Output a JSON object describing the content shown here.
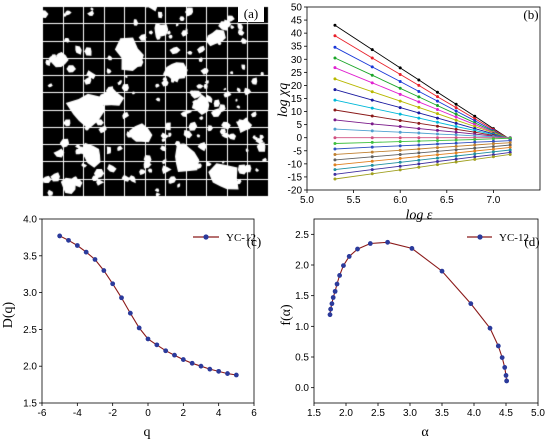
{
  "panel_labels": {
    "a": "(a)",
    "b": "(b)",
    "c": "(c)",
    "d": "(d)"
  },
  "chart_data": [
    {
      "type": "image",
      "panel": "(a)",
      "grid": {
        "rows": 11,
        "cols": 11
      }
    },
    {
      "type": "line",
      "panel": "(b)",
      "xlabel": "log ε",
      "ylabel": "log χq",
      "xlim": [
        5.0,
        7.5
      ],
      "ylim": [
        -20,
        50
      ],
      "xticks": [
        "5.0",
        "5.5",
        "6.0",
        "6.5",
        "7.0"
      ],
      "yticks": [
        "-20",
        "-15",
        "-10",
        "-5",
        "0",
        "5",
        "10",
        "15",
        "20",
        "25",
        "30",
        "35",
        "40",
        "45",
        "50"
      ],
      "x": [
        5.3,
        5.7,
        6.0,
        6.2,
        6.4,
        6.6,
        6.8,
        7.0,
        7.18
      ],
      "series": [
        {
          "color": "#000000",
          "values": [
            43.0,
            33.7,
            26.7,
            22.1,
            17.4,
            12.8,
            8.2,
            3.5,
            -0.7
          ]
        },
        {
          "color": "#e8202a",
          "values": [
            39.0,
            30.5,
            24.2,
            20.0,
            15.7,
            11.5,
            7.3,
            3.1,
            -0.7
          ]
        },
        {
          "color": "#1a38d8",
          "values": [
            34.6,
            27.1,
            21.5,
            17.7,
            14.0,
            10.2,
            6.5,
            2.7,
            -0.7
          ]
        },
        {
          "color": "#1aa528",
          "values": [
            30.5,
            23.9,
            18.9,
            15.6,
            12.3,
            9.0,
            5.7,
            2.4,
            -0.6
          ]
        },
        {
          "color": "#e020d0",
          "values": [
            26.8,
            21.0,
            16.6,
            13.7,
            10.8,
            7.9,
            5.0,
            2.1,
            -0.6
          ]
        },
        {
          "color": "#b8b800",
          "values": [
            22.5,
            17.6,
            14.0,
            11.6,
            9.2,
            6.7,
            4.3,
            1.9,
            -0.3
          ]
        },
        {
          "color": "#1a1aa0",
          "values": [
            18.4,
            14.4,
            11.5,
            9.5,
            7.5,
            5.5,
            3.5,
            1.5,
            -0.3
          ]
        },
        {
          "color": "#00b8d8",
          "values": [
            14.4,
            11.3,
            9.0,
            7.5,
            5.9,
            4.3,
            2.8,
            1.2,
            -0.2
          ]
        },
        {
          "color": "#8a1a1a",
          "values": [
            10.6,
            8.3,
            6.6,
            5.5,
            4.4,
            3.2,
            2.1,
            0.9,
            -0.1
          ]
        },
        {
          "color": "#7a1a8a",
          "values": [
            6.8,
            5.3,
            4.3,
            3.5,
            2.8,
            2.1,
            1.4,
            0.6,
            0.0
          ]
        },
        {
          "color": "#50a0d0",
          "values": [
            3.3,
            2.6,
            2.1,
            1.8,
            1.4,
            1.1,
            0.7,
            0.4,
            0.1
          ]
        },
        {
          "color": "#d05080",
          "values": [
            0.0,
            0.0,
            0.0,
            0.0,
            0.0,
            0.0,
            0.0,
            0.0,
            0.0
          ]
        },
        {
          "color": "#40c040",
          "values": [
            -2.2,
            -1.8,
            -1.5,
            -1.3,
            -1.1,
            -0.9,
            -0.7,
            -0.4,
            -0.2
          ]
        },
        {
          "color": "#3050c0",
          "values": [
            -4.3,
            -3.6,
            -3.1,
            -2.8,
            -2.4,
            -2.1,
            -1.7,
            -1.4,
            -1.1
          ]
        },
        {
          "color": "#c08030",
          "values": [
            -6.4,
            -5.5,
            -4.8,
            -4.3,
            -3.8,
            -3.3,
            -2.8,
            -2.3,
            -1.9
          ]
        },
        {
          "color": "#606060",
          "values": [
            -8.5,
            -7.3,
            -6.4,
            -5.8,
            -5.2,
            -4.6,
            -4.0,
            -3.4,
            -2.8
          ]
        },
        {
          "color": "#e08020",
          "values": [
            -10.4,
            -9.0,
            -7.9,
            -7.2,
            -6.5,
            -5.8,
            -5.1,
            -4.4,
            -3.7
          ]
        },
        {
          "color": "#2090a0",
          "values": [
            -12.2,
            -10.6,
            -9.4,
            -8.6,
            -7.8,
            -7.0,
            -6.2,
            -5.4,
            -4.7
          ]
        },
        {
          "color": "#4030a0",
          "values": [
            -14.0,
            -12.2,
            -10.9,
            -10.0,
            -9.1,
            -8.2,
            -7.3,
            -6.5,
            -5.6
          ]
        },
        {
          "color": "#a0a020",
          "values": [
            -15.8,
            -13.8,
            -12.3,
            -11.3,
            -10.3,
            -9.3,
            -8.3,
            -7.3,
            -6.4
          ]
        }
      ]
    },
    {
      "type": "line",
      "panel": "(c)",
      "xlabel": "q",
      "ylabel": "D(q)",
      "xlim": [
        -6,
        6
      ],
      "ylim": [
        1.5,
        4.0
      ],
      "xticks": [
        "-6",
        "-4",
        "-2",
        "0",
        "2",
        "4",
        "6"
      ],
      "yticks": [
        "1.5",
        "2.0",
        "2.5",
        "3.0",
        "3.5",
        "4.0"
      ],
      "series": [
        {
          "name": "YC-12",
          "x": [
            -5,
            -4.5,
            -4,
            -3.5,
            -3,
            -2.5,
            -2,
            -1.5,
            -1,
            -0.5,
            0,
            0.5,
            1,
            1.5,
            2,
            2.5,
            3,
            3.5,
            4,
            4.5,
            5
          ],
          "values": [
            3.77,
            3.71,
            3.64,
            3.55,
            3.45,
            3.3,
            3.12,
            2.93,
            2.72,
            2.52,
            2.37,
            2.29,
            2.21,
            2.15,
            2.09,
            2.04,
            2.0,
            1.96,
            1.93,
            1.9,
            1.88
          ]
        }
      ]
    },
    {
      "type": "line",
      "panel": "(d)",
      "xlabel": "α",
      "ylabel": "f(α)",
      "xlim": [
        1.5,
        5.0
      ],
      "ylim": [
        -0.25,
        2.75
      ],
      "xticks": [
        "1.5",
        "2.0",
        "2.5",
        "3.0",
        "3.5",
        "4.0",
        "4.5",
        "5.0"
      ],
      "yticks": [
        "0.0",
        "0.5",
        "1.0",
        "1.5",
        "2.0",
        "2.5"
      ],
      "series": [
        {
          "name": "YC-12",
          "x": [
            1.75,
            1.76,
            1.78,
            1.8,
            1.83,
            1.86,
            1.9,
            1.96,
            2.05,
            2.18,
            2.38,
            2.65,
            3.03,
            3.5,
            3.95,
            4.25,
            4.38,
            4.44,
            4.48,
            4.5,
            4.51
          ],
          "values": [
            1.19,
            1.28,
            1.37,
            1.47,
            1.57,
            1.69,
            1.83,
            1.99,
            2.14,
            2.26,
            2.35,
            2.37,
            2.27,
            1.9,
            1.37,
            0.97,
            0.68,
            0.49,
            0.33,
            0.2,
            0.11
          ]
        }
      ]
    }
  ]
}
